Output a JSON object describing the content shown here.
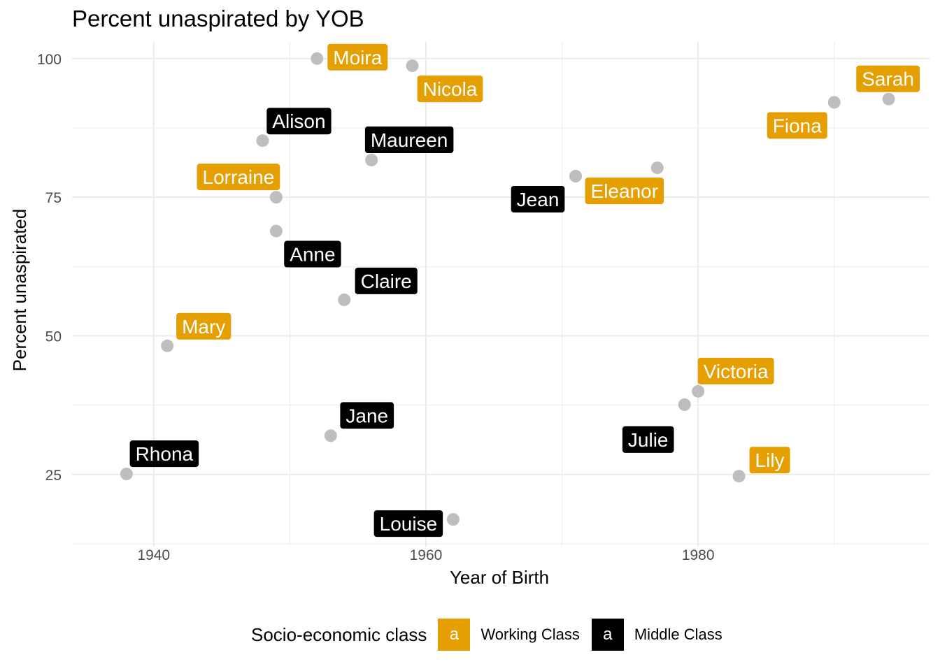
{
  "chart_data": {
    "type": "scatter",
    "title": "Percent unaspirated by YOB",
    "xlabel": "Year of Birth",
    "ylabel": "Percent unaspirated",
    "xlim": [
      1934,
      1997
    ],
    "ylim": [
      12,
      103
    ],
    "x_ticks": [
      1940,
      1960,
      1980
    ],
    "y_ticks": [
      25,
      50,
      75,
      100
    ],
    "grid": true,
    "legend": {
      "title": "Socio-economic class",
      "position": "bottom",
      "key_glyph": "a",
      "items": [
        {
          "label": "Working Class",
          "color": "#E69F00"
        },
        {
          "label": "Middle Class",
          "color": "#000000"
        }
      ]
    },
    "point_color": "#bebebe",
    "points": [
      {
        "name": "Moira",
        "x": 1952,
        "y": 100,
        "class": "Working Class"
      },
      {
        "name": "Nicola",
        "x": 1959,
        "y": 98.7,
        "class": "Working Class"
      },
      {
        "name": "Alison",
        "x": 1948,
        "y": 85.2,
        "class": "Middle Class"
      },
      {
        "name": "Maureen",
        "x": 1956,
        "y": 81.7,
        "class": "Middle Class"
      },
      {
        "name": "Lorraine",
        "x": 1949,
        "y": 75,
        "class": "Working Class"
      },
      {
        "name": "Anne",
        "x": 1949,
        "y": 68.9,
        "class": "Middle Class"
      },
      {
        "name": "Claire",
        "x": 1954,
        "y": 56.5,
        "class": "Middle Class"
      },
      {
        "name": "Mary",
        "x": 1941,
        "y": 48.2,
        "class": "Working Class"
      },
      {
        "name": "Jane",
        "x": 1953,
        "y": 32,
        "class": "Middle Class"
      },
      {
        "name": "Rhona",
        "x": 1938,
        "y": 25.1,
        "class": "Middle Class"
      },
      {
        "name": "Louise",
        "x": 1962,
        "y": 16.9,
        "class": "Middle Class"
      },
      {
        "name": "Jean",
        "x": 1971,
        "y": 78.8,
        "class": "Middle Class"
      },
      {
        "name": "Eleanor",
        "x": 1977,
        "y": 80.3,
        "class": "Working Class"
      },
      {
        "name": "Fiona",
        "x": 1990,
        "y": 92.1,
        "class": "Working Class"
      },
      {
        "name": "Sarah",
        "x": 1994,
        "y": 92.7,
        "class": "Working Class"
      },
      {
        "name": "Victoria",
        "x": 1980,
        "y": 40,
        "class": "Working Class"
      },
      {
        "name": "Julie",
        "x": 1979,
        "y": 37.6,
        "class": "Middle Class"
      },
      {
        "name": "Lily",
        "x": 1983,
        "y": 24.7,
        "class": "Working Class"
      }
    ]
  }
}
